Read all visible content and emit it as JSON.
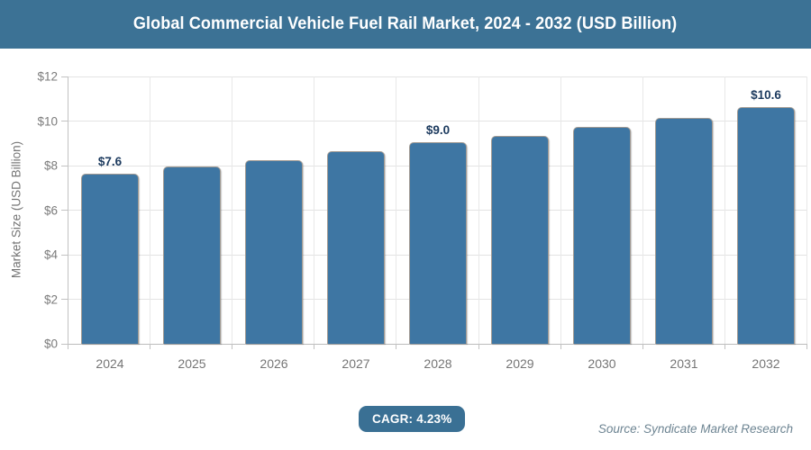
{
  "title_bar": {
    "title": "Global Commercial Vehicle Fuel Rail Market, 2024 - 2032 (USD Billion)"
  },
  "chart_data": {
    "type": "bar",
    "title": "Global Commercial Vehicle Fuel Rail Market, 2024 - 2032 (USD Billion)",
    "categories": [
      "2024",
      "2025",
      "2026",
      "2027",
      "2028",
      "2029",
      "2030",
      "2031",
      "2032"
    ],
    "values": [
      7.6,
      7.9,
      8.2,
      8.6,
      9.0,
      9.3,
      9.7,
      10.1,
      10.6
    ],
    "bar_value_labels": [
      "$7.6",
      null,
      null,
      null,
      "$9.0",
      null,
      null,
      null,
      "$10.6"
    ],
    "xlabel": "",
    "ylabel": "Market Size (USD Billion)",
    "ylim": [
      0,
      12
    ],
    "ytick_step": 2,
    "ytick_labels": [
      "$0",
      "$2",
      "$4",
      "$6",
      "$8",
      "$10",
      "$12"
    ],
    "grid": true,
    "legend": false
  },
  "footer": {
    "cagr_label": "CAGR: 4.23%",
    "source": "Source: Syndicate Market Research"
  },
  "colors": {
    "header_bg": "#3c7295",
    "bar": "#3e76a3",
    "badge_bg": "#3a7094",
    "value_label": "#1c3a5e",
    "axis_text": "#757575",
    "source_text": "#6d8492"
  }
}
